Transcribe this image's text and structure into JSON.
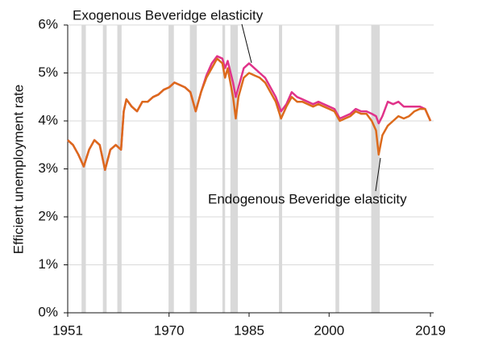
{
  "chart_data": {
    "type": "line",
    "y_label": "Efficient unemployment rate",
    "x": [
      1951,
      1952,
      1953,
      1954,
      1955,
      1956,
      1957,
      1958,
      1959,
      1960,
      1961,
      1961.5,
      1962,
      1963,
      1964,
      1965,
      1966,
      1967,
      1968,
      1969,
      1970,
      1971,
      1972,
      1973,
      1974,
      1975,
      1976,
      1977,
      1978,
      1979,
      1980,
      1980.5,
      1981,
      1982,
      1982.5,
      1983,
      1984,
      1985,
      1986,
      1987,
      1988,
      1989,
      1990,
      1991,
      1992,
      1993,
      1994,
      1995,
      1996,
      1997,
      1998,
      1999,
      2000,
      2001,
      2002,
      2003,
      2004,
      2005,
      2006,
      2007,
      2008,
      2008.8,
      2009.3,
      2010,
      2011,
      2012,
      2013,
      2014,
      2015,
      2016,
      2017,
      2018,
      2019
    ],
    "series": [
      {
        "name": "Exogenous Beveridge elasticity",
        "color": "#e0338a",
        "values": [
          3.6,
          3.5,
          3.3,
          3.05,
          3.4,
          3.6,
          3.5,
          2.98,
          3.4,
          3.5,
          3.4,
          4.2,
          4.45,
          4.3,
          4.2,
          4.4,
          4.4,
          4.5,
          4.55,
          4.65,
          4.7,
          4.8,
          4.75,
          4.7,
          4.6,
          4.2,
          4.6,
          4.95,
          5.2,
          5.35,
          5.3,
          5.1,
          5.25,
          4.8,
          4.5,
          4.7,
          5.1,
          5.2,
          5.1,
          5.0,
          4.9,
          4.7,
          4.5,
          4.2,
          4.35,
          4.6,
          4.5,
          4.45,
          4.4,
          4.35,
          4.4,
          4.35,
          4.3,
          4.25,
          4.05,
          4.1,
          4.15,
          4.25,
          4.2,
          4.2,
          4.15,
          4.1,
          3.95,
          4.1,
          4.4,
          4.35,
          4.4,
          4.3,
          4.3,
          4.3,
          4.3,
          4.25,
          4.0
        ]
      },
      {
        "name": "Endogenous Beveridge elasticity",
        "color": "#dc6a1c",
        "values": [
          3.6,
          3.5,
          3.3,
          3.05,
          3.4,
          3.6,
          3.5,
          2.98,
          3.4,
          3.5,
          3.4,
          4.2,
          4.45,
          4.3,
          4.2,
          4.4,
          4.4,
          4.5,
          4.55,
          4.65,
          4.7,
          4.8,
          4.75,
          4.7,
          4.6,
          4.2,
          4.6,
          4.9,
          5.1,
          5.3,
          5.2,
          4.9,
          5.1,
          4.5,
          4.05,
          4.5,
          4.9,
          5.0,
          4.95,
          4.9,
          4.8,
          4.6,
          4.4,
          4.05,
          4.3,
          4.5,
          4.4,
          4.4,
          4.35,
          4.3,
          4.35,
          4.3,
          4.25,
          4.2,
          4.0,
          4.05,
          4.1,
          4.2,
          4.15,
          4.15,
          4.0,
          3.8,
          3.3,
          3.7,
          3.9,
          4.0,
          4.1,
          4.05,
          4.1,
          4.2,
          4.25,
          4.25,
          4.0
        ]
      }
    ],
    "recessions": [
      [
        1953.6,
        1954.4
      ],
      [
        1957.6,
        1958.3
      ],
      [
        1960.3,
        1961.1
      ],
      [
        1969.9,
        1970.9
      ],
      [
        1973.9,
        1975.2
      ],
      [
        1980.0,
        1980.5
      ],
      [
        1981.5,
        1982.9
      ],
      [
        1990.6,
        1991.2
      ],
      [
        2001.2,
        2001.9
      ],
      [
        2007.9,
        2009.5
      ]
    ],
    "recession_color": "#d9d9d9",
    "xlim": [
      1951,
      2019
    ],
    "xticks": [
      1951,
      1970,
      1985,
      2000,
      2019
    ],
    "ylim": [
      0,
      6
    ],
    "yticks": [
      {
        "value": 0,
        "label": "0%"
      },
      {
        "value": 1,
        "label": "1%"
      },
      {
        "value": 2,
        "label": "2%"
      },
      {
        "value": 3,
        "label": "3%"
      },
      {
        "value": 4,
        "label": "4%"
      },
      {
        "value": 5,
        "label": "5%"
      },
      {
        "value": 6,
        "label": "6%"
      }
    ],
    "grid": true
  }
}
